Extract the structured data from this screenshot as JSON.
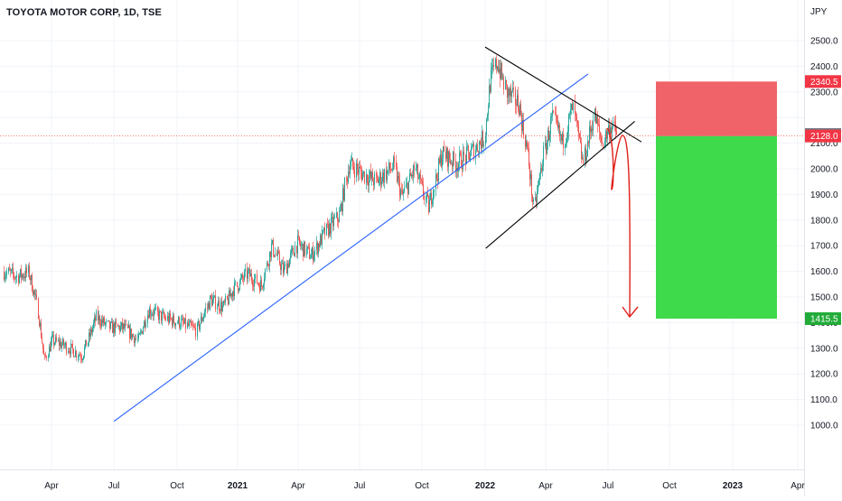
{
  "header": {
    "title": "TOYOTA MOTOR CORP, 1D, TSE",
    "currency": "JPY"
  },
  "chart_data": {
    "type": "candlestick",
    "title": "TOYOTA MOTOR CORP, 1D, TSE",
    "y_unit": "JPY",
    "ylim": [
      935,
      2590
    ],
    "y_ticks": [
      "1000.0",
      "1100.0",
      "1200.0",
      "1300.0",
      "1400.0",
      "1500.0",
      "1600.0",
      "1700.0",
      "1800.0",
      "1900.0",
      "2000.0",
      "2100.0",
      "2300.0",
      "2400.0",
      "2500.0"
    ],
    "x_ticks": [
      "Apr",
      "Jul",
      "Oct",
      "2021",
      "Apr",
      "Jul",
      "Oct",
      "2022",
      "Apr",
      "Jul",
      "Oct",
      "2023",
      "Apr"
    ],
    "grid": true,
    "colors": {
      "up": "#26a69a",
      "down": "#ef5350",
      "trendline": "#2962ff",
      "pattern": "#000000",
      "projection": "#e0201b",
      "stop_zone": "#f06368",
      "target_zone": "#3fd94c"
    },
    "price_path": [
      {
        "t": "2020-01-06",
        "p": 1600
      },
      {
        "t": "2020-01-30",
        "p": 1580
      },
      {
        "t": "2020-02-20",
        "p": 1595
      },
      {
        "t": "2020-03-05",
        "p": 1480
      },
      {
        "t": "2020-03-19",
        "p": 1250
      },
      {
        "t": "2020-04-01",
        "p": 1330
      },
      {
        "t": "2020-04-20",
        "p": 1310
      },
      {
        "t": "2020-05-15",
        "p": 1270
      },
      {
        "t": "2020-06-05",
        "p": 1420
      },
      {
        "t": "2020-06-25",
        "p": 1380
      },
      {
        "t": "2020-07-15",
        "p": 1380
      },
      {
        "t": "2020-08-05",
        "p": 1330
      },
      {
        "t": "2020-08-20",
        "p": 1450
      },
      {
        "t": "2020-09-10",
        "p": 1420
      },
      {
        "t": "2020-10-05",
        "p": 1400
      },
      {
        "t": "2020-10-30",
        "p": 1370
      },
      {
        "t": "2020-11-20",
        "p": 1490
      },
      {
        "t": "2020-12-10",
        "p": 1460
      },
      {
        "t": "2020-12-25",
        "p": 1530
      },
      {
        "t": "2021-01-15",
        "p": 1590
      },
      {
        "t": "2021-02-05",
        "p": 1545
      },
      {
        "t": "2021-02-20",
        "p": 1700
      },
      {
        "t": "2021-03-10",
        "p": 1600
      },
      {
        "t": "2021-03-30",
        "p": 1710
      },
      {
        "t": "2021-04-20",
        "p": 1660
      },
      {
        "t": "2021-05-10",
        "p": 1750
      },
      {
        "t": "2021-06-01",
        "p": 1820
      },
      {
        "t": "2021-06-15",
        "p": 2020
      },
      {
        "t": "2021-07-05",
        "p": 1980
      },
      {
        "t": "2021-07-25",
        "p": 1950
      },
      {
        "t": "2021-08-20",
        "p": 2010
      },
      {
        "t": "2021-09-01",
        "p": 1890
      },
      {
        "t": "2021-09-20",
        "p": 2000
      },
      {
        "t": "2021-10-10",
        "p": 1850
      },
      {
        "t": "2021-10-30",
        "p": 2060
      },
      {
        "t": "2021-11-20",
        "p": 2020
      },
      {
        "t": "2021-12-10",
        "p": 2060
      },
      {
        "t": "2021-12-30",
        "p": 2120
      },
      {
        "t": "2022-01-08",
        "p": 2340
      },
      {
        "t": "2022-01-18",
        "p": 2420
      },
      {
        "t": "2022-02-01",
        "p": 2300
      },
      {
        "t": "2022-02-20",
        "p": 2250
      },
      {
        "t": "2022-03-05",
        "p": 2050
      },
      {
        "t": "2022-03-14",
        "p": 1840
      },
      {
        "t": "2022-03-28",
        "p": 2050
      },
      {
        "t": "2022-04-10",
        "p": 2200
      },
      {
        "t": "2022-04-25",
        "p": 2100
      },
      {
        "t": "2022-05-10",
        "p": 2240
      },
      {
        "t": "2022-05-25",
        "p": 2020
      },
      {
        "t": "2022-06-10",
        "p": 2210
      },
      {
        "t": "2022-06-22",
        "p": 2100
      },
      {
        "t": "2022-07-04",
        "p": 2170
      },
      {
        "t": "2022-07-14",
        "p": 2134
      }
    ],
    "drawings": {
      "uptrend_line": [
        {
          "t": "2020-07-01",
          "p": 1015
        },
        {
          "t": "2022-06-02",
          "p": 2370
        }
      ],
      "triangle_upper": [
        {
          "t": "2022-01-01",
          "p": 2475
        },
        {
          "t": "2022-08-20",
          "p": 2105
        }
      ],
      "triangle_lower": [
        {
          "t": "2022-01-02",
          "p": 1690
        },
        {
          "t": "2022-08-10",
          "p": 2185
        }
      ],
      "projection_path_description": "wave down toward ~1900 then rebound and drop to ~1415"
    },
    "position": {
      "stop_price": "2340.5",
      "current_price": "2134.0",
      "entry_price": "2128.0",
      "target_price": "1415.5"
    }
  }
}
